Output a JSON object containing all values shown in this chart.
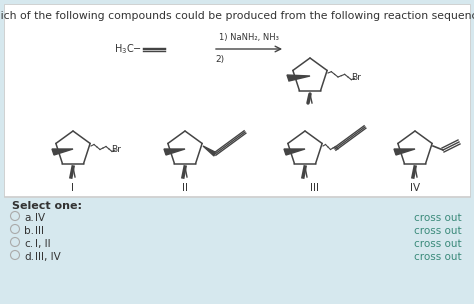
{
  "bg_white": "#f8f8f5",
  "bg_blue": "#d6e8ee",
  "border_color": "#cccccc",
  "title": "Which of the following compounds could be produced from the following reaction sequence?",
  "title_fontsize": 7.8,
  "select_text": "Select one:",
  "options": [
    {
      "letter": "a.",
      "text": "IV"
    },
    {
      "letter": "b.",
      "text": "III"
    },
    {
      "letter": "c.",
      "text": "I, II"
    },
    {
      "letter": "d.",
      "text": "III, IV"
    }
  ],
  "crossout_text": "cross out",
  "crossout_color": "#3a8a7a",
  "option_fontsize": 7.5,
  "rxn_label1": "1) NaNH₂, NH₃",
  "rxn_label2": "2)",
  "roman_labels": [
    "I",
    "II",
    "III",
    "IV"
  ],
  "line_color": "#444444",
  "text_color": "#333333"
}
